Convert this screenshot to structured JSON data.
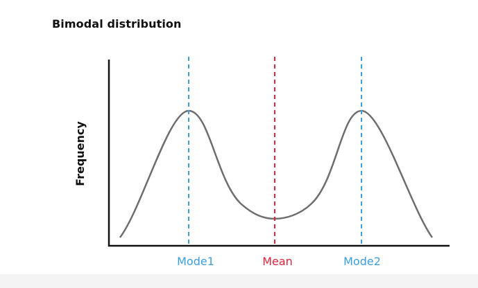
{
  "title": "Bimodal distribution",
  "colors": {
    "mode": "#3a9ee6",
    "mean": "#e8223c",
    "curve": "#6e6e6e",
    "axis": "#111111"
  },
  "chart_data": {
    "type": "line",
    "title": "Bimodal distribution",
    "ylabel": "Frequency",
    "xlabel": "",
    "grid": false,
    "markers": [
      {
        "label": "Mode1",
        "kind": "mode"
      },
      {
        "label": "Mean",
        "kind": "mean"
      },
      {
        "label": "Mode2",
        "kind": "mode"
      }
    ]
  }
}
